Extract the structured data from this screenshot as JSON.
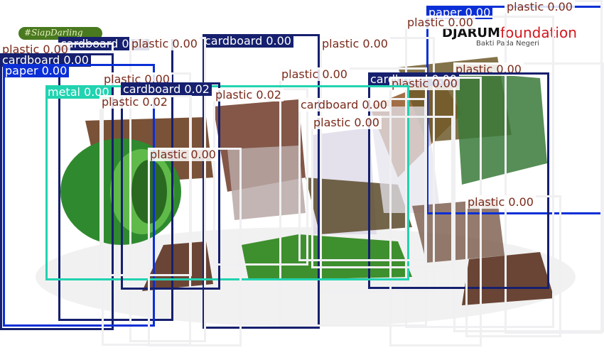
{
  "image": {
    "brand": {
      "name": "DJARUM",
      "sub": "foundation",
      "tagline": "Bakti Pada Negeri"
    },
    "left_logo_text": "#SiapDarling"
  },
  "colors": {
    "navy": "#16206e",
    "blue": "#0b2fd6",
    "teal": "#22d3b0",
    "white_box": "#f0f0f2",
    "label_text_dark": "#7a2a1a",
    "label_text_light": "#ffffff"
  },
  "detections": [
    {
      "label": "paper 0.00",
      "class": "paper",
      "style": "blue"
    },
    {
      "label": "plastic 0.00",
      "class": "plastic",
      "style": "white"
    },
    {
      "label": "plastic 0.00",
      "class": "plastic",
      "style": "white"
    },
    {
      "label": "cardboard 0.00",
      "class": "cardboard",
      "style": "navy"
    },
    {
      "label": "plastic 0.00",
      "class": "plastic",
      "style": "white"
    },
    {
      "label": "cardboard 0.00",
      "class": "cardboard",
      "style": "navy"
    },
    {
      "label": "plastic 0.00",
      "class": "plastic",
      "style": "white"
    },
    {
      "label": "plastic 0.00",
      "class": "plastic",
      "style": "white"
    },
    {
      "label": "cardboard 0.00",
      "class": "cardboard",
      "style": "navy"
    },
    {
      "label": "paper 0.00",
      "class": "paper",
      "style": "blue"
    },
    {
      "label": "plastic 0.00",
      "class": "plastic",
      "style": "white"
    },
    {
      "label": "plastic 0.00",
      "class": "plastic",
      "style": "white"
    },
    {
      "label": "cardboard 0.00",
      "class": "cardboard",
      "style": "navy"
    },
    {
      "label": "plastic 0.00",
      "class": "plastic",
      "style": "white"
    },
    {
      "label": "plastic 0.00",
      "class": "plastic",
      "style": "white"
    },
    {
      "label": "metal 0.00",
      "class": "metal",
      "style": "teal"
    },
    {
      "label": "cardboard 0.02",
      "class": "cardboard",
      "style": "navy"
    },
    {
      "label": "plastic 0.02",
      "class": "plastic",
      "style": "white"
    },
    {
      "label": "plastic 0.02",
      "class": "plastic",
      "style": "white"
    },
    {
      "label": "cardboard 0.00",
      "class": "cardboard",
      "style": "white"
    },
    {
      "label": "plastic 0.00",
      "class": "plastic",
      "style": "white"
    },
    {
      "label": "plastic 0.00",
      "class": "plastic",
      "style": "white"
    },
    {
      "label": "plastic 0.00",
      "class": "plastic",
      "style": "white"
    }
  ]
}
